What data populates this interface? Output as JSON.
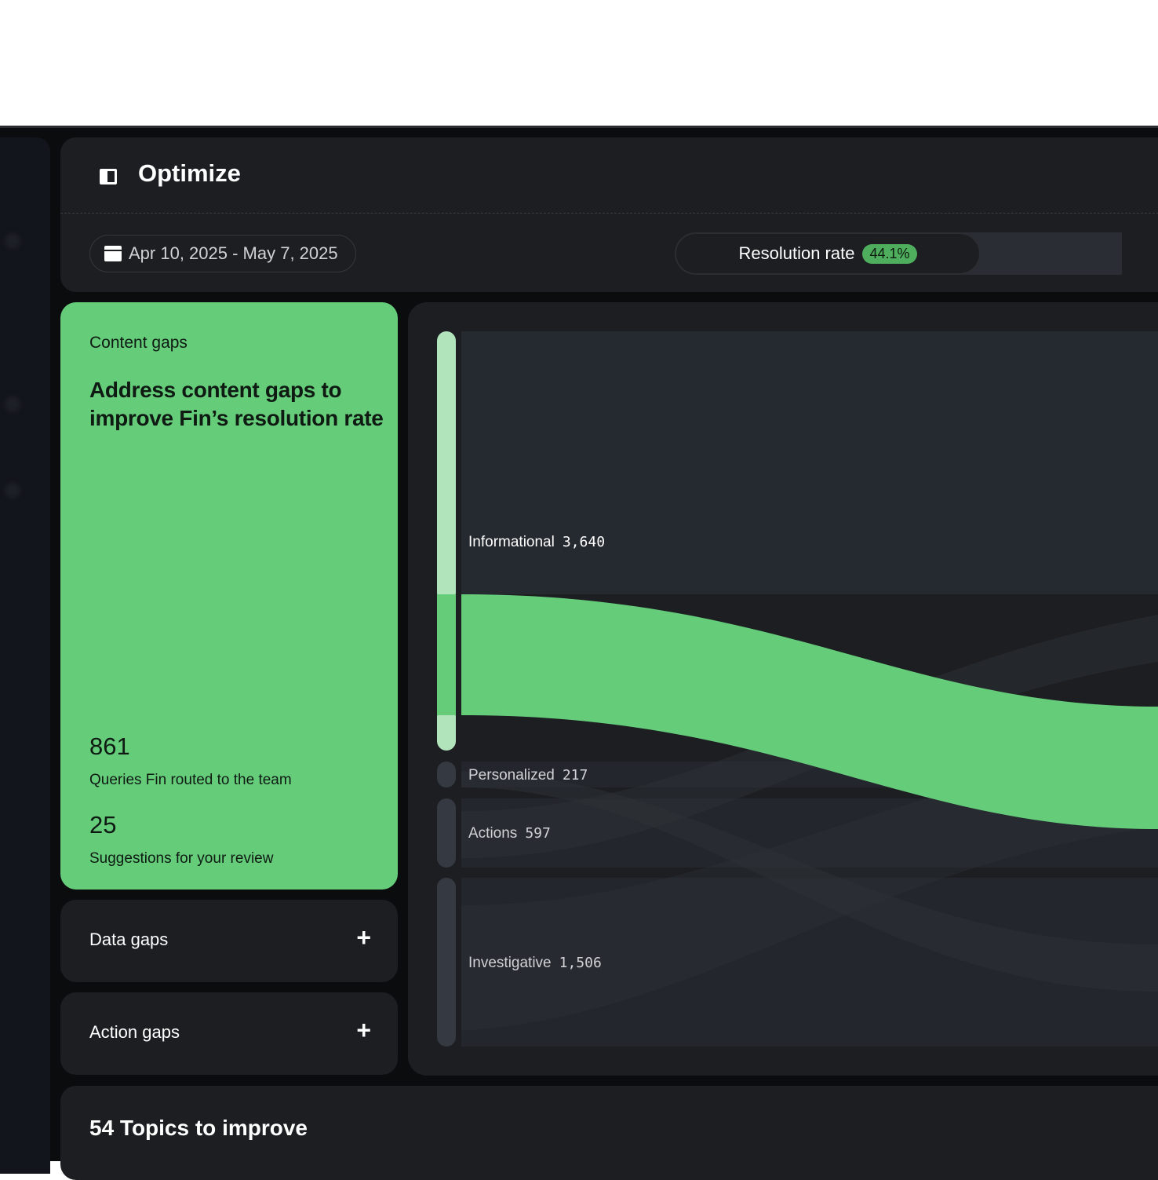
{
  "header": {
    "title": "Optimize",
    "date_range": "Apr 10, 2025 - May 7, 2025",
    "resolution_label": "Resolution rate",
    "resolution_value": "44.1%"
  },
  "content_gaps": {
    "label": "Content gaps",
    "headline": "Address content gaps to improve Fin’s resolution rate",
    "queries_count": "861",
    "queries_label": "Queries Fin routed to the team",
    "suggestions_count": "25",
    "suggestions_label": "Suggestions for your review"
  },
  "cards": [
    {
      "label": "Data gaps",
      "icon": "plus-icon"
    },
    {
      "label": "Action gaps",
      "icon": "plus-icon"
    }
  ],
  "sankey": {
    "nodes": [
      {
        "name": "Informational",
        "value": "3,640"
      },
      {
        "name": "Personalized",
        "value": "217"
      },
      {
        "name": "Actions",
        "value": "597"
      },
      {
        "name": "Investigative",
        "value": "1,506"
      }
    ],
    "highlight_color": "#65cc7a",
    "light_color": "#b1e4bb"
  },
  "topics": {
    "title": "54 Topics to improve"
  }
}
